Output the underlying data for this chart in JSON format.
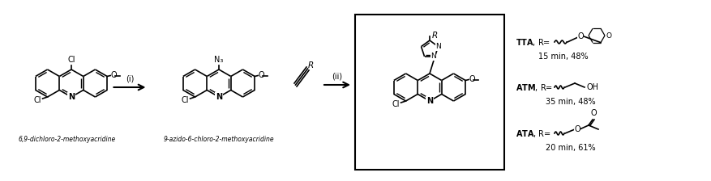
{
  "bg_color": "#ffffff",
  "line_color": "#000000",
  "title": "",
  "figsize": [
    8.77,
    2.24
  ],
  "dpi": 100,
  "label1": "6,9-dichloro-2-methoxyacridine",
  "label2": "9-azido-6-chloro-2-methoxyacridine",
  "step1": "(i)",
  "step2": "(ii)",
  "compound1": "TTA",
  "compound2": "ATM",
  "compound3": "ATA",
  "time1": "15 min, 48%",
  "time2": "35 min, 48%",
  "time3": "20 min, 61%",
  "rgroup1": "R=",
  "rgroup2": "R=",
  "rgroup3": "R="
}
